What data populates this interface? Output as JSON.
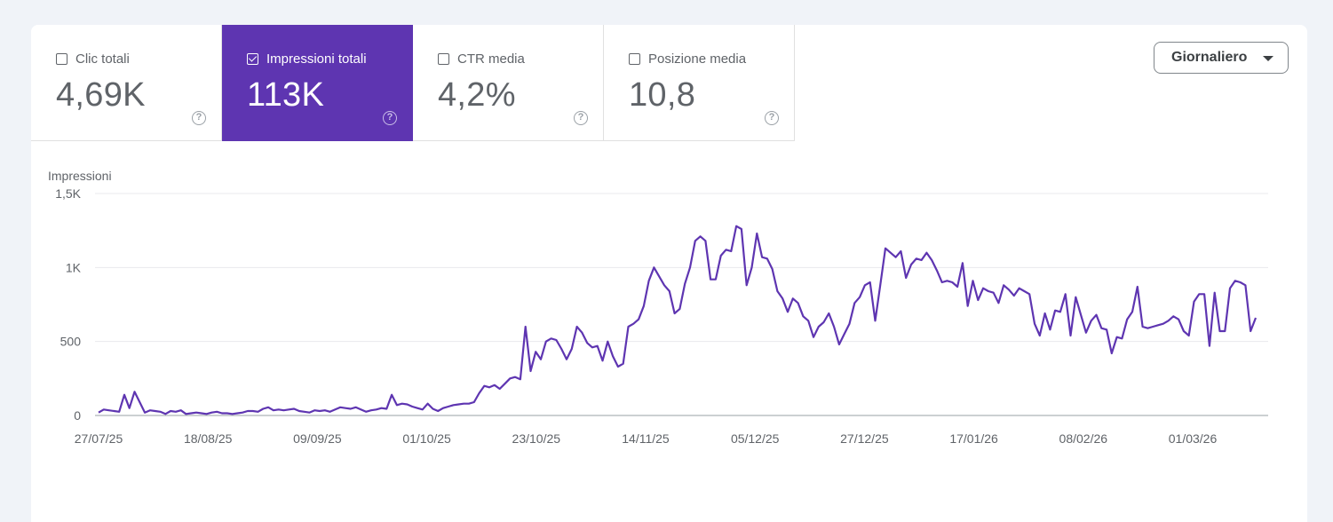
{
  "metrics": [
    {
      "label": "Clic totali",
      "value": "4,69K",
      "active": false,
      "help_icon": "help-circle-icon"
    },
    {
      "label": "Impressioni totali",
      "value": "113K",
      "active": true,
      "help_icon": "help-circle-icon"
    },
    {
      "label": "CTR media",
      "value": "4,2%",
      "active": false,
      "help_icon": "help-circle-icon"
    },
    {
      "label": "Posizione media",
      "value": "10,8",
      "active": false,
      "help_icon": "help-circle-icon"
    }
  ],
  "period_dropdown": {
    "selected": "Giornaliero",
    "icon": "caret-down-icon"
  },
  "colors": {
    "accent": "#5e35b1",
    "line": "#5e35b1",
    "grid": "#e8eaed"
  },
  "chart_data": {
    "type": "line",
    "ylabel": "Impressioni",
    "ylim": [
      0,
      1500
    ],
    "yticks": [
      {
        "value": 0,
        "label": "0"
      },
      {
        "value": 500,
        "label": "500"
      },
      {
        "value": 1000,
        "label": "1K"
      },
      {
        "value": 1500,
        "label": "1,5K"
      }
    ],
    "x_start": "27/07/25",
    "x_end": "20/03/26",
    "xticks": [
      "27/07/25",
      "18/08/25",
      "09/09/25",
      "01/10/25",
      "23/10/25",
      "14/11/25",
      "05/12/25",
      "27/12/25",
      "17/01/26",
      "08/02/26",
      "01/03/26"
    ],
    "grid": true,
    "series": [
      {
        "values": [
          20,
          40,
          35,
          30,
          25,
          140,
          50,
          160,
          90,
          20,
          35,
          30,
          25,
          10,
          30,
          25,
          35,
          10,
          15,
          20,
          15,
          10,
          20,
          25,
          15,
          15,
          10,
          15,
          20,
          30,
          30,
          25,
          45,
          55,
          35,
          40,
          35,
          40,
          45,
          30,
          25,
          20,
          35,
          30,
          35,
          25,
          40,
          55,
          50,
          45,
          55,
          40,
          25,
          35,
          40,
          50,
          45,
          140,
          70,
          80,
          75,
          60,
          50,
          40,
          80,
          45,
          30,
          50,
          60,
          70,
          75,
          80,
          80,
          90,
          150,
          200,
          190,
          205,
          180,
          215,
          250,
          260,
          245,
          600,
          300,
          430,
          380,
          500,
          520,
          510,
          450,
          380,
          450,
          600,
          560,
          490,
          460,
          470,
          370,
          500,
          400,
          330,
          350,
          600,
          620,
          650,
          740,
          910,
          1000,
          940,
          880,
          840,
          690,
          720,
          890,
          1000,
          1180,
          1210,
          1180,
          920,
          920,
          1080,
          1120,
          1110,
          1280,
          1260,
          880,
          1000,
          1230,
          1070,
          1060,
          990,
          840,
          790,
          700,
          790,
          760,
          670,
          640,
          530,
          600,
          630,
          690,
          600,
          480,
          550,
          620,
          760,
          800,
          880,
          900,
          640,
          880,
          1130,
          1100,
          1070,
          1110,
          930,
          1020,
          1060,
          1050,
          1100,
          1050,
          980,
          900,
          910,
          900,
          870,
          1030,
          740,
          910,
          780,
          860,
          840,
          830,
          760,
          880,
          850,
          810,
          860,
          840,
          820,
          620,
          540,
          690,
          580,
          710,
          700,
          820,
          540,
          800,
          680,
          560,
          640,
          680,
          590,
          580,
          420,
          530,
          520,
          650,
          700,
          870,
          600,
          590,
          600,
          610,
          620,
          640,
          670,
          650,
          570,
          540,
          770,
          820,
          820,
          470,
          830,
          570,
          570,
          860,
          910,
          900,
          880,
          570,
          660
        ]
      }
    ]
  }
}
